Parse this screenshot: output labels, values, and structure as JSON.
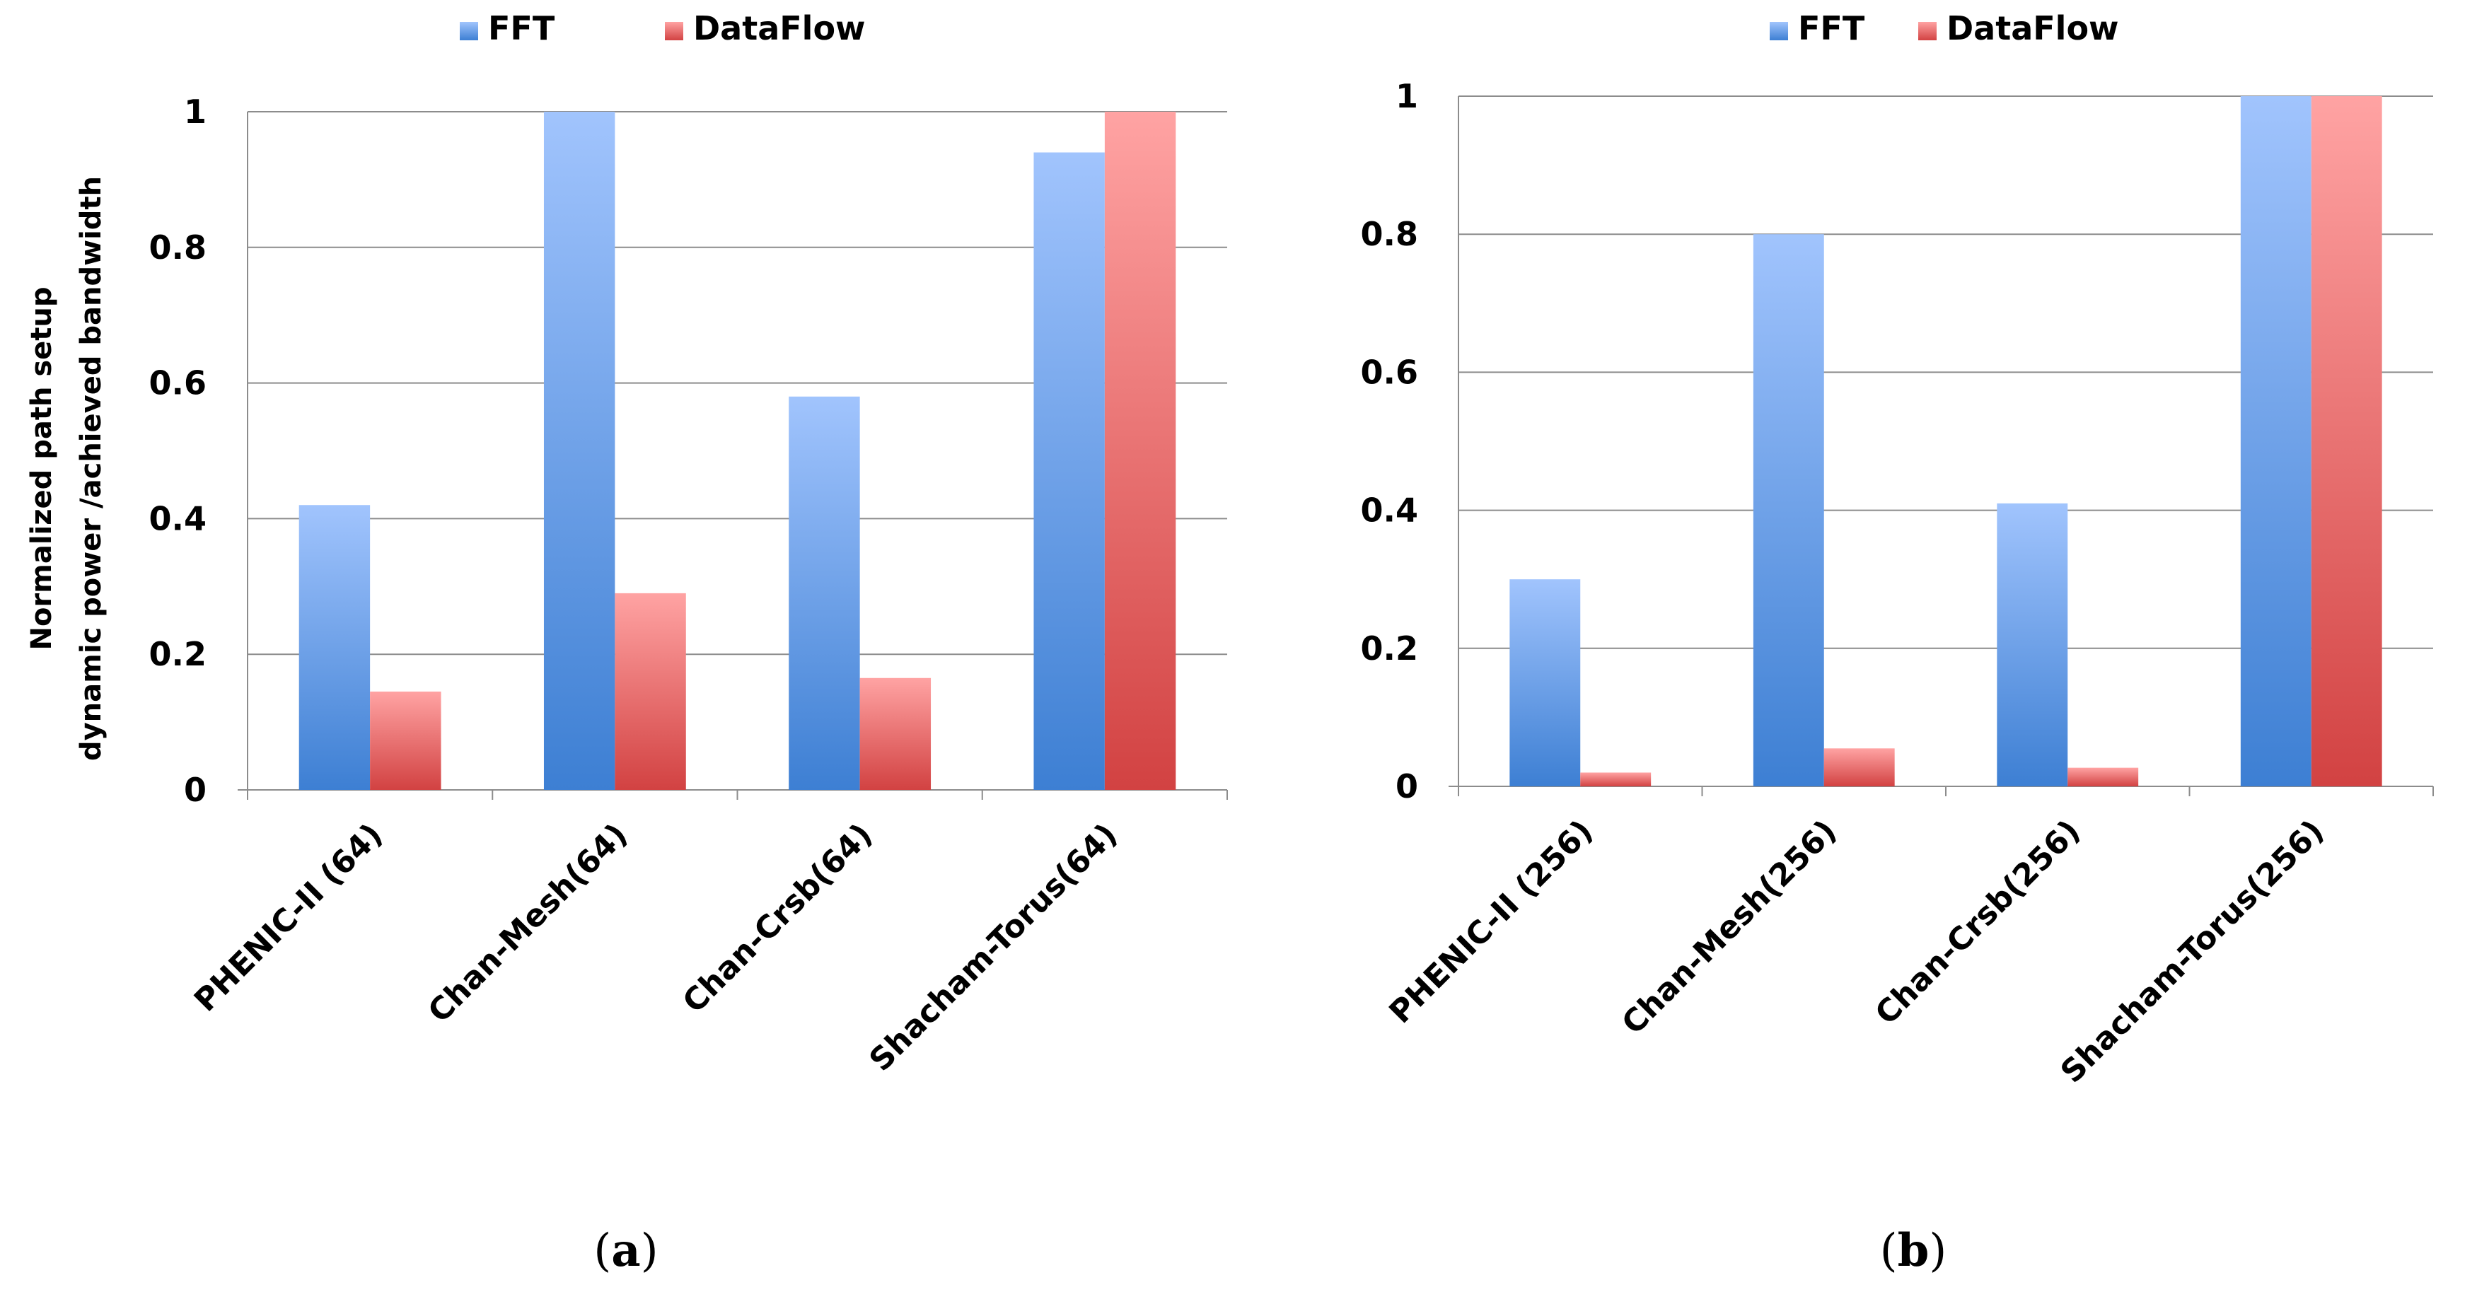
{
  "chart_data": [
    {
      "type": "bar",
      "panel_label": "a",
      "ylabel": [
        "Normalized path setup",
        "dynamic power /achieved bandwidth"
      ],
      "xlabel": "",
      "ylim": [
        0,
        1
      ],
      "yticks": [
        "0",
        "0.2",
        "0.4",
        "0.6",
        "0.8",
        "1"
      ],
      "grid": true,
      "legend_position": "top-center",
      "categories": [
        "PHENIC-II  (64)",
        "Chan-Mesh(64)",
        "Chan-Crsb(64)",
        "Shacham-Torus(64)"
      ],
      "series": [
        {
          "name": "FFT",
          "values": [
            0.42,
            1.0,
            0.58,
            0.94
          ]
        },
        {
          "name": "DataFlow",
          "values": [
            0.145,
            0.29,
            0.165,
            1.0
          ]
        }
      ]
    },
    {
      "type": "bar",
      "panel_label": "b",
      "ylabel": [
        "",
        ""
      ],
      "xlabel": "",
      "ylim": [
        0,
        1
      ],
      "yticks": [
        "0",
        "0.2",
        "0.4",
        "0.6",
        "0.8",
        "1"
      ],
      "grid": true,
      "legend_position": "top-center",
      "categories": [
        "PHENIC-II  (256)",
        "Chan-Mesh(256)",
        "Chan-Crsb(256)",
        "Shacham-Torus(256)"
      ],
      "series": [
        {
          "name": "FFT",
          "values": [
            0.3,
            0.8,
            0.41,
            1.0
          ]
        },
        {
          "name": "DataFlow",
          "values": [
            0.02,
            0.055,
            0.027,
            1.0
          ]
        }
      ]
    }
  ],
  "colors": {
    "fft_top": "#a1c4fd",
    "fft_bottom": "#3d7fd3",
    "dataflow_top": "#ffa3a3",
    "dataflow_bottom": "#d24242",
    "grid": "#8c8c8c",
    "axis": "#8c8c8c"
  }
}
